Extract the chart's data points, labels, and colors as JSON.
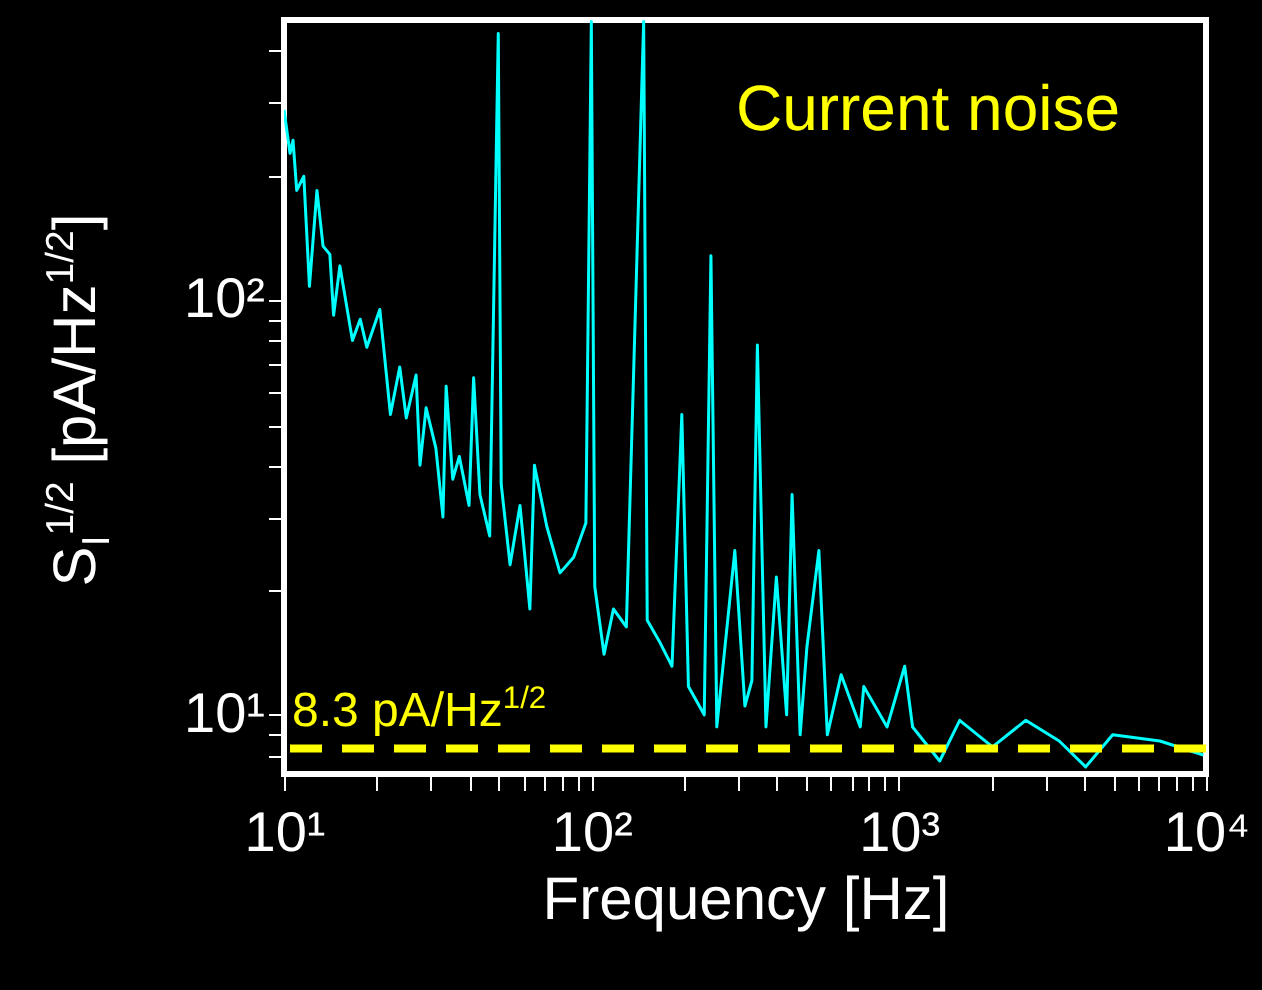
{
  "chart_data": {
    "type": "line",
    "xlabel": "Frequency  [Hz]",
    "ylabel": "S$_{I}$$^{1/2}$ [pA/Hz$^{1/2}$]",
    "annotations": [
      "Current noise"
    ],
    "log": "xy",
    "grid": false,
    "xlim": [
      10,
      10000
    ],
    "ylim": [
      7.2,
      474
    ],
    "xticks": [
      {
        "value": 10,
        "label": "10¹"
      },
      {
        "value": 20,
        "label": null
      },
      {
        "value": 30,
        "label": null
      },
      {
        "value": 40,
        "label": null
      },
      {
        "value": 50,
        "label": null
      },
      {
        "value": 60,
        "label": null
      },
      {
        "value": 70,
        "label": null
      },
      {
        "value": 80,
        "label": null
      },
      {
        "value": 90,
        "label": null
      },
      {
        "value": 100,
        "label": "10²"
      },
      {
        "value": 200,
        "label": null
      },
      {
        "value": 300,
        "label": null
      },
      {
        "value": 400,
        "label": null
      },
      {
        "value": 500,
        "label": null
      },
      {
        "value": 600,
        "label": null
      },
      {
        "value": 700,
        "label": null
      },
      {
        "value": 800,
        "label": null
      },
      {
        "value": 900,
        "label": null
      },
      {
        "value": 1000,
        "label": "10³"
      },
      {
        "value": 2000,
        "label": null
      },
      {
        "value": 3000,
        "label": null
      },
      {
        "value": 4000,
        "label": null
      },
      {
        "value": 5000,
        "label": null
      },
      {
        "value": 6000,
        "label": null
      },
      {
        "value": 7000,
        "label": null
      },
      {
        "value": 8000,
        "label": null
      },
      {
        "value": 9000,
        "label": null
      },
      {
        "value": 10000,
        "label": "10⁴"
      }
    ],
    "yticks": [
      {
        "value": 8,
        "label": null
      },
      {
        "value": 9,
        "label": null
      },
      {
        "value": 10,
        "label": "10¹"
      },
      {
        "value": 20,
        "label": null
      },
      {
        "value": 30,
        "label": null
      },
      {
        "value": 40,
        "label": null
      },
      {
        "value": 50,
        "label": null
      },
      {
        "value": 60,
        "label": null
      },
      {
        "value": 70,
        "label": null
      },
      {
        "value": 80,
        "label": null
      },
      {
        "value": 90,
        "label": null
      },
      {
        "value": 100,
        "label": "10²"
      },
      {
        "value": 200,
        "label": null
      },
      {
        "value": 300,
        "label": null
      },
      {
        "value": 400,
        "label": null
      }
    ],
    "ref_lines": [
      {
        "axis": "y",
        "value": 8.3,
        "label": "8.3 pA/Hz$^{1/2}$",
        "color": "#ffff00",
        "line_style": "dashed"
      }
    ],
    "series": [
      {
        "color": "#00ffff",
        "x": [
          10,
          10.46,
          10.7,
          11.0,
          11.6,
          12.1,
          12.8,
          13.4,
          14.1,
          14.5,
          15.2,
          16.7,
          17.7,
          18.6,
          20.5,
          22.2,
          23.8,
          25.0,
          26.9,
          27.7,
          29.0,
          31.2,
          32.9,
          33.7,
          35.4,
          37.2,
          40,
          41.4,
          43.4,
          46.7,
          49.8,
          50.9,
          54.4,
          58.6,
          63.1,
          65.3,
          71.6,
          79.1,
          87.6,
          96,
          100,
          102.6,
          110,
          118,
          130,
          148,
          152,
          166,
          183,
          197,
          207,
          233,
          245,
          256,
          293,
          316,
          333,
          347,
          370,
          400,
          432,
          450,
          478,
          503,
          550,
          586,
          650,
          750,
          770,
          917,
          1046,
          1110,
          1360,
          1580,
          2020,
          2590,
          3330,
          4060,
          4970,
          7080,
          9800
        ],
        "values": [
          288,
          226,
          243,
          184,
          199,
          108,
          184,
          135,
          129,
          92,
          121,
          80,
          90,
          77,
          95,
          53,
          69,
          52,
          66,
          40,
          55,
          44,
          30,
          62,
          37,
          42,
          32,
          65,
          34,
          27,
          440,
          36,
          23,
          32,
          18,
          40,
          28.5,
          22,
          24,
          29,
          470,
          20.4,
          14,
          18,
          16.3,
          470,
          16.9,
          15.1,
          13.1,
          53,
          11.7,
          10,
          128,
          9.35,
          24.9,
          10.5,
          12.1,
          78,
          9.35,
          21.5,
          10,
          34,
          8.95,
          14.6,
          24.9,
          8.95,
          12.5,
          9.35,
          11.7,
          9.35,
          13.1,
          9.35,
          7.74,
          9.7,
          8.37,
          9.7,
          8.65,
          7.49,
          8.95,
          8.65,
          8.0
        ]
      }
    ]
  }
}
